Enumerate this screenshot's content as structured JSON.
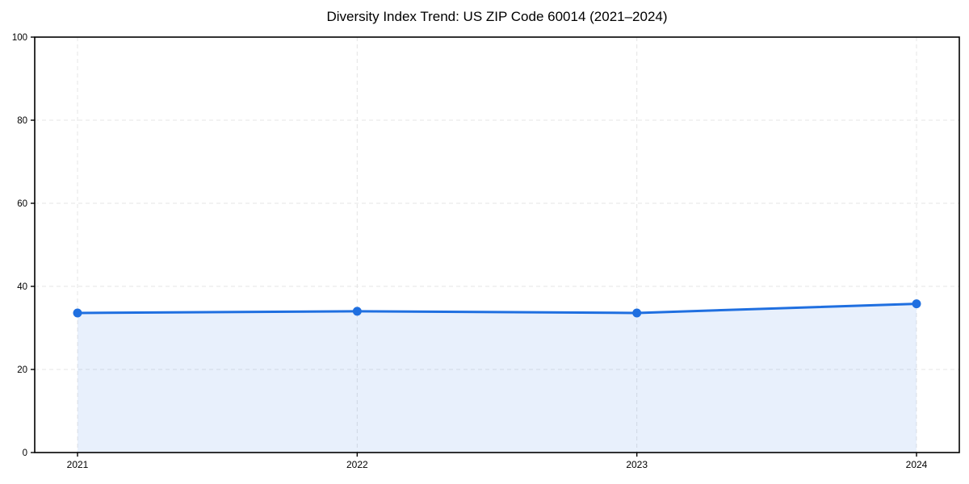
{
  "page": {
    "background": "#ffffff"
  },
  "chart_data": {
    "type": "area",
    "title": "Diversity Index Trend: US ZIP Code 60014 (2021–2024)",
    "categories": [
      "2021",
      "2022",
      "2023",
      "2024"
    ],
    "series": [
      {
        "name": "Diversity Index",
        "values": [
          33.6,
          34.0,
          33.6,
          35.8
        ]
      }
    ],
    "xlabel": "",
    "ylabel": "",
    "ylim": [
      0,
      100
    ],
    "yticks": [
      0,
      20,
      40,
      60,
      80,
      100
    ],
    "grid": true,
    "grid_style": "dashed",
    "legend_position": "none",
    "colors": {
      "line": "#1f6fe0",
      "marker": "#1f6fe0",
      "area_fill": "#1f6fe0",
      "area_fill_opacity": 0.1,
      "grid": "#e4e4e4",
      "spine": "#000000",
      "text": "#000000"
    }
  }
}
